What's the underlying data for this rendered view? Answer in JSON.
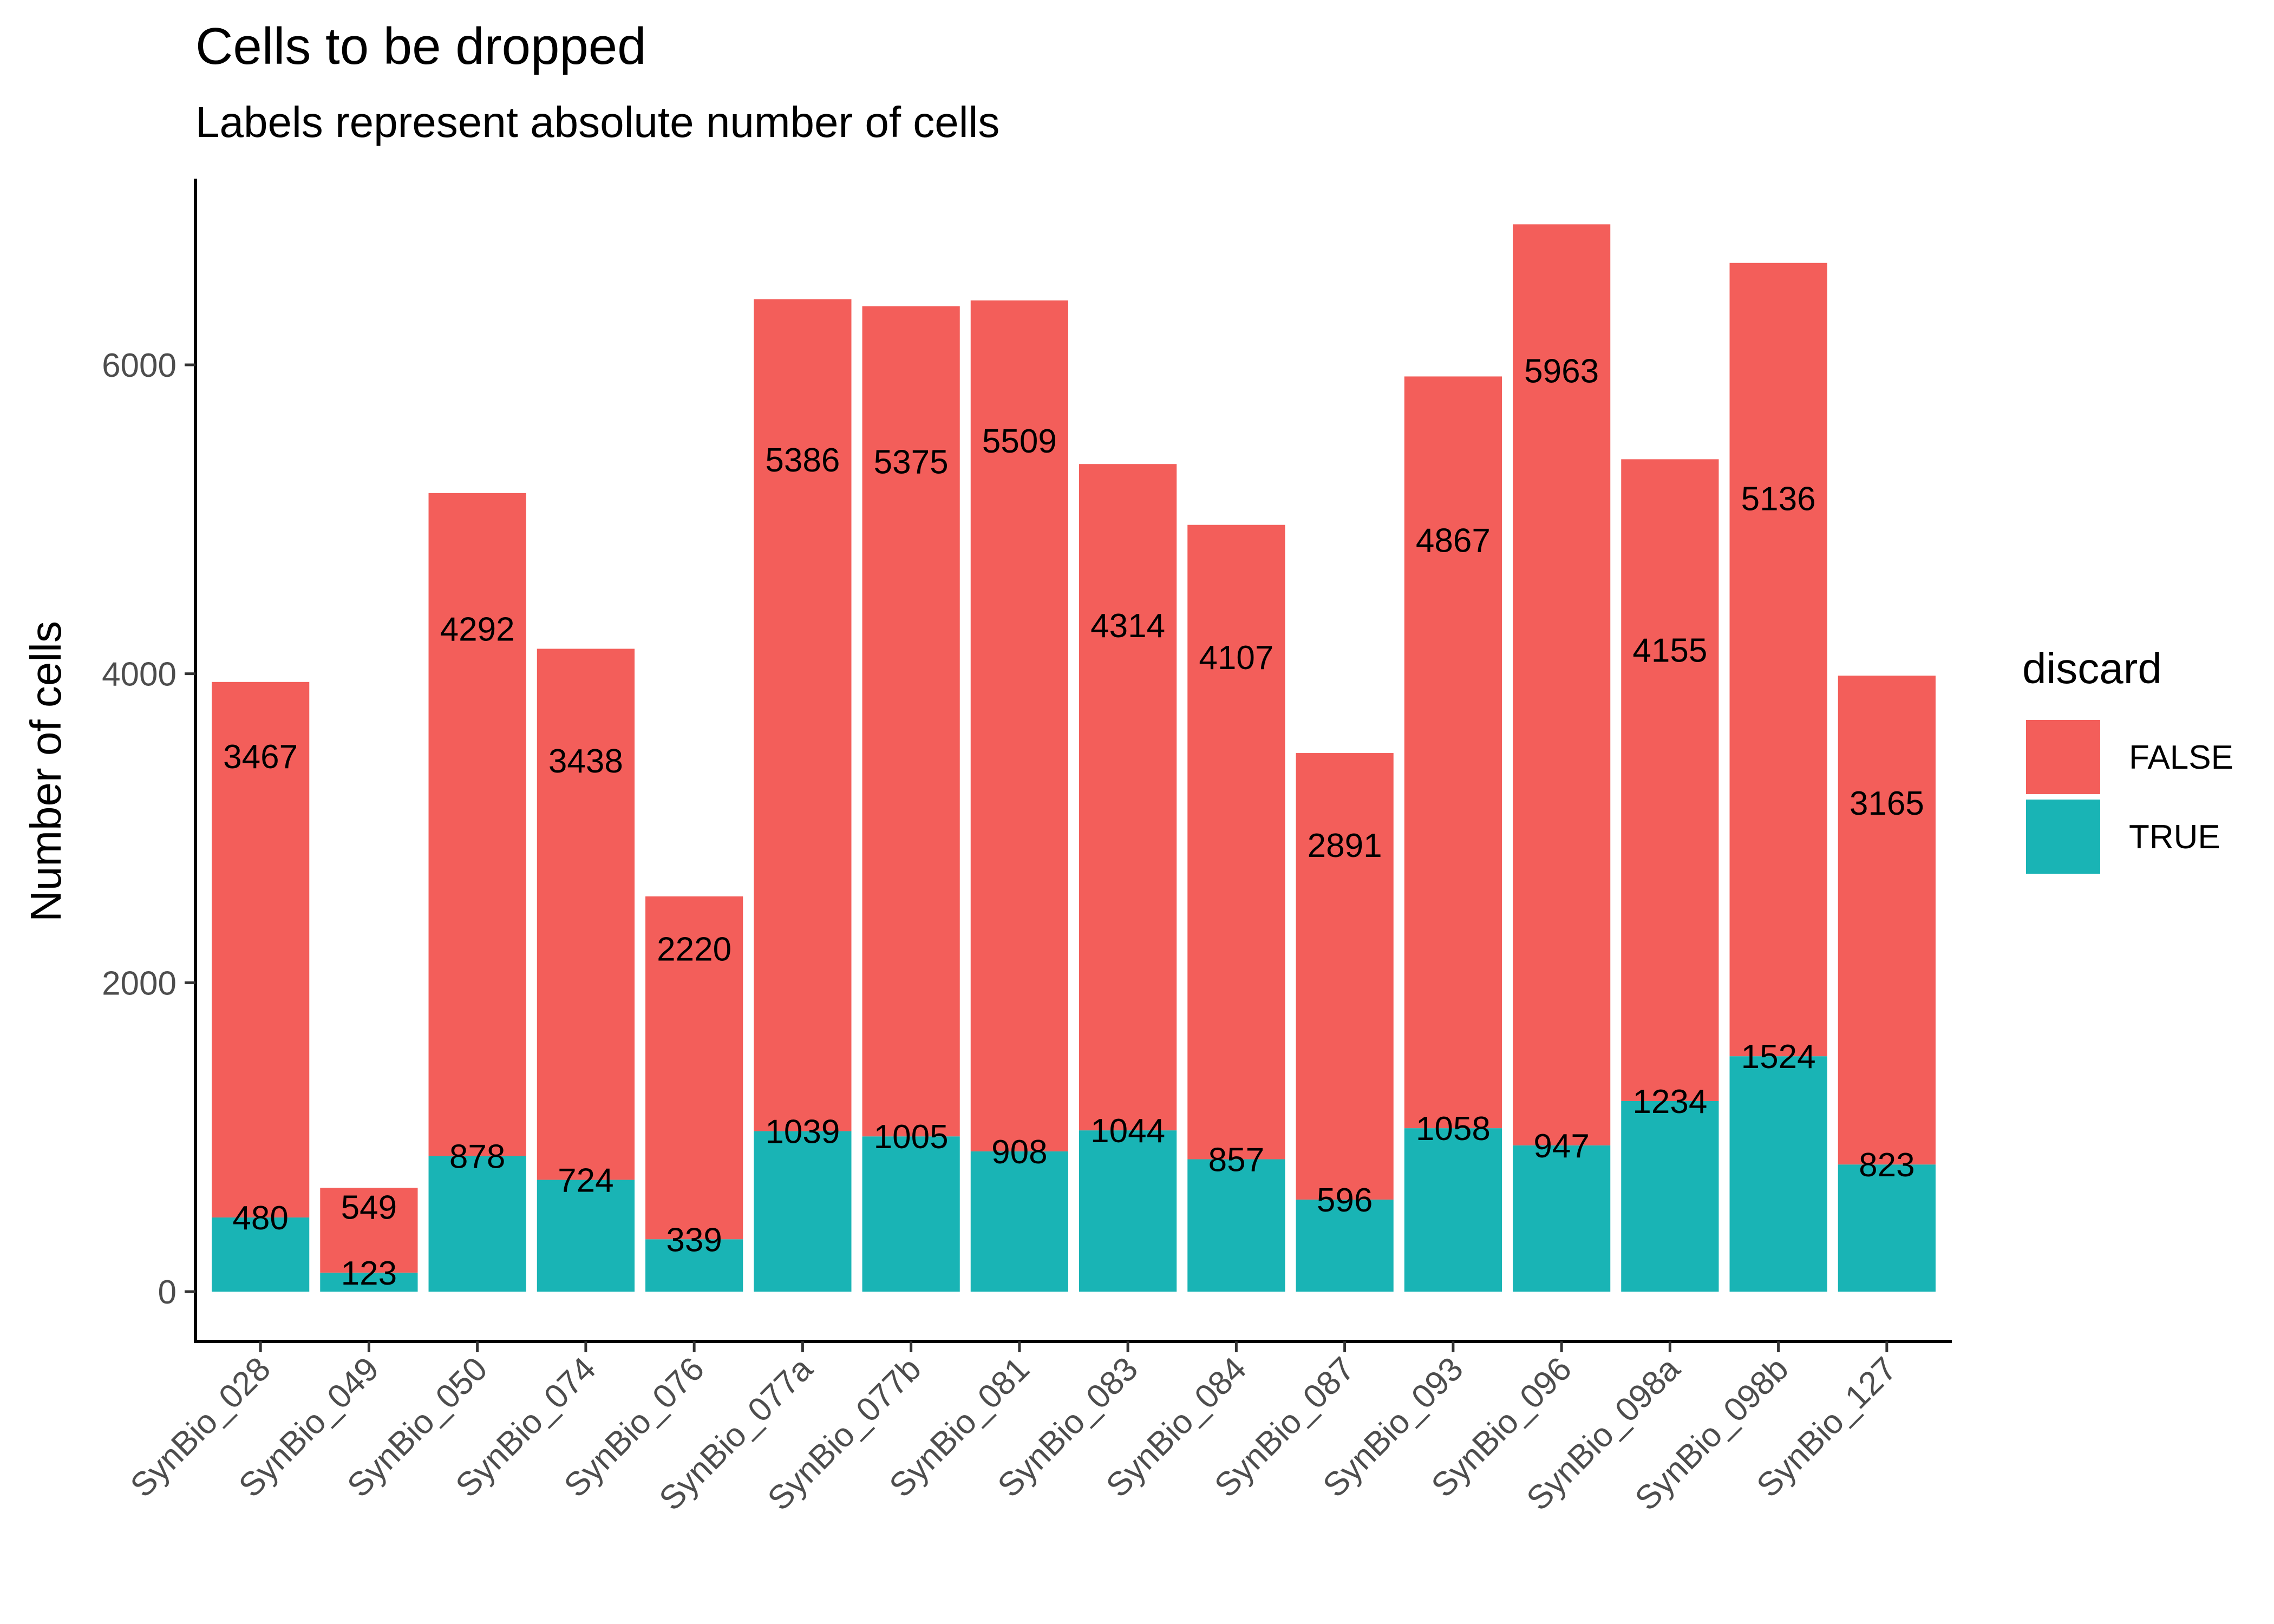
{
  "chart_data": {
    "type": "bar",
    "stacked": true,
    "title": "Cells to be dropped",
    "subtitle": "Labels represent absolute number of cells",
    "xlabel": "",
    "ylabel": "Number of cells",
    "ylim": [
      0,
      7000
    ],
    "yticks": [
      0,
      2000,
      4000,
      6000
    ],
    "grid": false,
    "categories": [
      "SynBio_028",
      "SynBio_049",
      "SynBio_050",
      "SynBio_074",
      "SynBio_076",
      "SynBio_077a",
      "SynBio_077b",
      "SynBio_081",
      "SynBio_083",
      "SynBio_084",
      "SynBio_087",
      "SynBio_093",
      "SynBio_096",
      "SynBio_098a",
      "SynBio_098b",
      "SynBio_127"
    ],
    "legend": {
      "title": "discard",
      "position": "right"
    },
    "series": [
      {
        "name": "TRUE",
        "color": "#19B4B5",
        "values": [
          480,
          123,
          878,
          724,
          339,
          1039,
          1005,
          908,
          1044,
          857,
          596,
          1058,
          947,
          1234,
          1524,
          823
        ]
      },
      {
        "name": "FALSE",
        "color": "#F35E5A",
        "values": [
          3467,
          549,
          4292,
          3438,
          2220,
          5386,
          5375,
          5509,
          4314,
          4107,
          2891,
          4867,
          5963,
          4155,
          5136,
          3165
        ]
      }
    ],
    "legend_order": [
      "FALSE",
      "TRUE"
    ]
  }
}
